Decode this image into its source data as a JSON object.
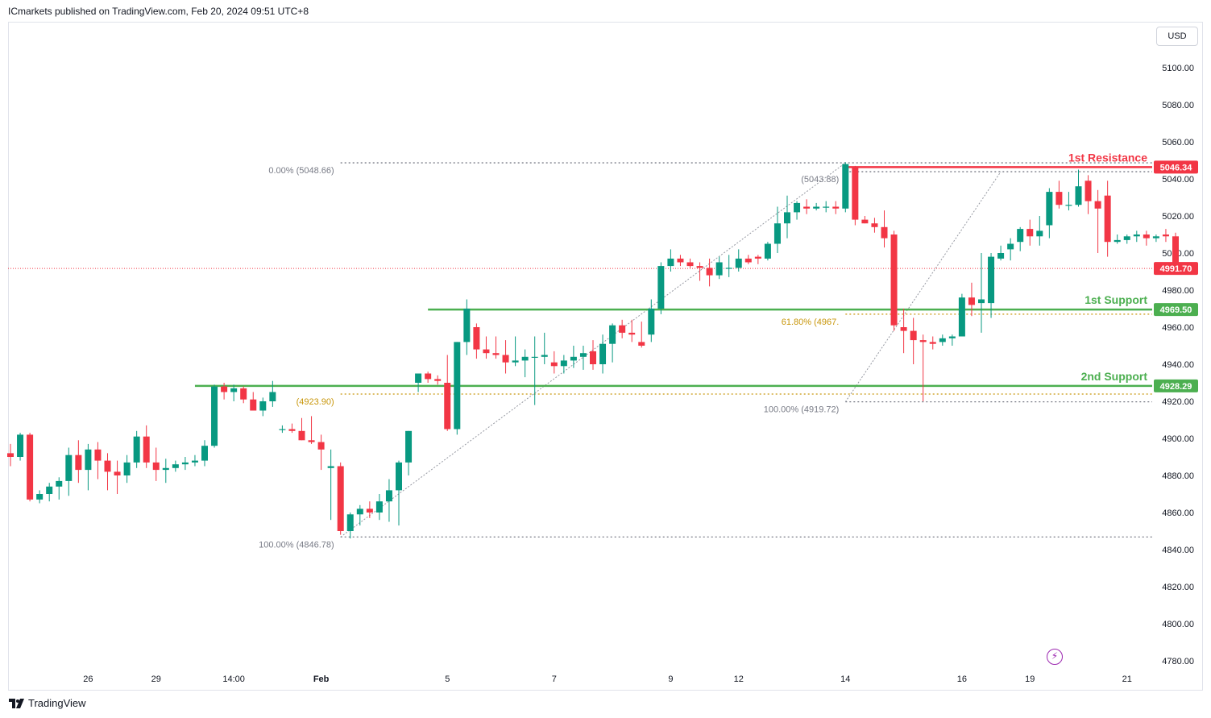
{
  "header": {
    "published": "ICmarkets published on TradingView.com, Feb 20, 2024 09:51 UTC+8"
  },
  "currency_button": "USD",
  "footer": {
    "brand": "TradingView"
  },
  "colors": {
    "up": "#089981",
    "down": "#f23645",
    "support": "#4caf50",
    "resistance": "#f23645",
    "fib": "#c8960a",
    "grid_text": "#131722"
  },
  "chart_data": {
    "type": "candlestick",
    "yticks": [
      5100,
      5080,
      5060,
      5040,
      5020,
      5000,
      4980,
      4960,
      4940,
      4920,
      4900,
      4880,
      4860,
      4840,
      4820,
      4800,
      4780
    ],
    "ytick_labels": [
      "5100.00",
      "5080.00",
      "5060.00",
      "5040.00",
      "5020.00",
      "5000.00",
      "4980.00",
      "4960.00",
      "4940.00",
      "4920.00",
      "4900.00",
      "4880.00",
      "4860.00",
      "4840.00",
      "4820.00",
      "4800.00",
      "4780.00"
    ],
    "xtick_labels": [
      {
        "label": "26",
        "i": 8,
        "bold": false
      },
      {
        "label": "29",
        "i": 15,
        "bold": false
      },
      {
        "label": "14:00",
        "i": 23,
        "bold": false
      },
      {
        "label": "Feb",
        "i": 32,
        "bold": true
      },
      {
        "label": "5",
        "i": 45,
        "bold": false
      },
      {
        "label": "7",
        "i": 56,
        "bold": false
      },
      {
        "label": "9",
        "i": 68,
        "bold": false
      },
      {
        "label": "12",
        "i": 75,
        "bold": false
      },
      {
        "label": "14",
        "i": 86,
        "bold": false
      },
      {
        "label": "16",
        "i": 98,
        "bold": false
      },
      {
        "label": "19",
        "i": 105,
        "bold": false
      },
      {
        "label": "21",
        "i": 115,
        "bold": false
      }
    ],
    "candles": [
      [
        4892,
        4897,
        4885,
        4890
      ],
      [
        4890,
        4903,
        4888,
        4902
      ],
      [
        4902,
        4903,
        4866,
        4867
      ],
      [
        4867,
        4872,
        4865,
        4870
      ],
      [
        4870,
        4876,
        4866,
        4874
      ],
      [
        4874,
        4879,
        4867,
        4877
      ],
      [
        4877,
        4895,
        4869,
        4891
      ],
      [
        4891,
        4899,
        4876,
        4883
      ],
      [
        4883,
        4897,
        4872,
        4894
      ],
      [
        4894,
        4898,
        4878,
        4888
      ],
      [
        4888,
        4892,
        4872,
        4882
      ],
      [
        4882,
        4888,
        4870,
        4880
      ],
      [
        4880,
        4891,
        4876,
        4887
      ],
      [
        4887,
        4904,
        4884,
        4901
      ],
      [
        4901,
        4907,
        4884,
        4887
      ],
      [
        4887,
        4895,
        4877,
        4883
      ],
      [
        4883,
        4889,
        4876,
        4884
      ],
      [
        4884,
        4888,
        4882,
        4886
      ],
      [
        4886,
        4890,
        4883,
        4887
      ],
      [
        4887,
        4891,
        4885,
        4888
      ],
      [
        4888,
        4899,
        4885,
        4896
      ],
      [
        4896,
        4929,
        4895,
        4928
      ],
      [
        4928,
        4930,
        4921,
        4925
      ],
      [
        4925,
        4929,
        4920,
        4927
      ],
      [
        4927,
        4928,
        4919,
        4921
      ],
      [
        4921,
        4925,
        4915,
        4915
      ],
      [
        4915,
        4922,
        4912,
        4920
      ],
      [
        4920,
        4931,
        4917,
        4925
      ],
      [
        4905,
        4907,
        4903,
        4905
      ],
      [
        4905,
        4908,
        4903,
        4904
      ],
      [
        4904,
        4911,
        4899,
        4899
      ],
      [
        4899,
        4912,
        4897,
        4898
      ],
      [
        4898,
        4902,
        4883,
        4894
      ],
      [
        4884,
        4894,
        4856,
        4885
      ],
      [
        4885,
        4887,
        4848,
        4850
      ],
      [
        4850,
        4860,
        4846,
        4859
      ],
      [
        4859,
        4864,
        4853,
        4862
      ],
      [
        4862,
        4866,
        4857,
        4860
      ],
      [
        4860,
        4870,
        4856,
        4866
      ],
      [
        4866,
        4878,
        4855,
        4872
      ],
      [
        4872,
        4888,
        4853,
        4887
      ],
      [
        4887,
        4904,
        4880,
        4904
      ],
      [
        4930,
        4935,
        4925,
        4935
      ],
      [
        4935,
        4936,
        4930,
        4932
      ],
      [
        4932,
        4934,
        4929,
        4931
      ],
      [
        4930,
        4945,
        4904,
        4905
      ],
      [
        4905,
        4952,
        4902,
        4952
      ],
      [
        4952,
        4975,
        4945,
        4970
      ],
      [
        4960,
        4962,
        4943,
        4948
      ],
      [
        4948,
        4955,
        4943,
        4946
      ],
      [
        4946,
        4955,
        4943,
        4945
      ],
      [
        4945,
        4953,
        4935,
        4941
      ],
      [
        4941,
        4955,
        4939,
        4942
      ],
      [
        4942,
        4948,
        4933,
        4944
      ],
      [
        4944,
        4955,
        4918,
        4944
      ],
      [
        4944,
        4957,
        4940,
        4945
      ],
      [
        4941,
        4947,
        4935,
        4939
      ],
      [
        4939,
        4945,
        4935,
        4942
      ],
      [
        4942,
        4950,
        4938,
        4944
      ],
      [
        4944,
        4950,
        4937,
        4946
      ],
      [
        4947,
        4953,
        4937,
        4940
      ],
      [
        4940,
        4956,
        4935,
        4951
      ],
      [
        4951,
        4962,
        4941,
        4961
      ],
      [
        4961,
        4964,
        4954,
        4957
      ],
      [
        4957,
        4964,
        4952,
        4956
      ],
      [
        4952,
        4963,
        4949,
        4950
      ],
      [
        4956,
        4975,
        4952,
        4970
      ],
      [
        4970,
        4995,
        4967,
        4993
      ],
      [
        4993,
        5002,
        4990,
        4997
      ],
      [
        4997,
        4999,
        4993,
        4995
      ],
      [
        4995,
        4997,
        4992,
        4993
      ],
      [
        4993,
        4995,
        4985,
        4992
      ],
      [
        4992,
        4997,
        4982,
        4988
      ],
      [
        4988,
        4998,
        4986,
        4995
      ],
      [
        4992,
        4999,
        4987,
        4992
      ],
      [
        4992,
        5002,
        4990,
        4997
      ],
      [
        4997,
        4999,
        4994,
        4995
      ],
      [
        4998,
        4999,
        4994,
        4997
      ],
      [
        4997,
        5006,
        4996,
        5005
      ],
      [
        5005,
        5025,
        5000,
        5016
      ],
      [
        5016,
        5031,
        5008,
        5022
      ],
      [
        5022,
        5028,
        5018,
        5027
      ],
      [
        5025,
        5029,
        5021,
        5024
      ],
      [
        5024,
        5027,
        5023,
        5025
      ],
      [
        5025,
        5028,
        5022,
        5025
      ],
      [
        5025,
        5028,
        5021,
        5024
      ],
      [
        5024,
        5049,
        5022,
        5048
      ],
      [
        5046,
        5047,
        5015,
        5018
      ],
      [
        5018,
        5020,
        5016,
        5016
      ],
      [
        5016,
        5019,
        5011,
        5014
      ],
      [
        5014,
        5023,
        5003,
        5008
      ],
      [
        5010,
        5012,
        4958,
        4961
      ],
      [
        4960,
        4970,
        4946,
        4958
      ],
      [
        4958,
        4965,
        4940,
        4953
      ],
      [
        4953,
        4956,
        4920,
        4952
      ],
      [
        4952,
        4955,
        4948,
        4951
      ],
      [
        4952,
        4956,
        4950,
        4954
      ],
      [
        4954,
        4956,
        4950,
        4955
      ],
      [
        4955,
        4978,
        4956,
        4976
      ],
      [
        4976,
        4984,
        4966,
        4972
      ],
      [
        4973,
        5000,
        4957,
        4975
      ],
      [
        4973,
        5000,
        4965,
        4998
      ],
      [
        4997,
        5004,
        4996,
        5000
      ],
      [
        5002,
        5008,
        4996,
        5005
      ],
      [
        5006,
        5014,
        5001,
        5013
      ],
      [
        5013,
        5018,
        5004,
        5009
      ],
      [
        5009,
        5020,
        5004,
        5012
      ],
      [
        5015,
        5035,
        5008,
        5033
      ],
      [
        5033,
        5039,
        5024,
        5026
      ],
      [
        5026,
        5033,
        5023,
        5026
      ],
      [
        5026,
        5045,
        5025,
        5036
      ],
      [
        5039,
        5042,
        5021,
        5028
      ],
      [
        5028,
        5034,
        5000,
        5024
      ],
      [
        5031,
        5039,
        4998,
        5006
      ],
      [
        5006,
        5010,
        5005,
        5007
      ],
      [
        5007,
        5010,
        5005,
        5009
      ],
      [
        5009,
        5012,
        5006,
        5010
      ],
      [
        5010,
        5012,
        5004,
        5008
      ],
      [
        5008,
        5010,
        5006,
        5009
      ],
      [
        5010,
        5013,
        5006,
        5009
      ],
      [
        5009,
        5011,
        4991,
        4991
      ]
    ],
    "last_price": 4991.7,
    "last_price_label": "4991.70",
    "levels": [
      {
        "name": "1st Resistance",
        "value": 5046.34,
        "label": "5046.34",
        "kind": "resistance"
      },
      {
        "name": "1st Support",
        "value": 4969.5,
        "label": "4969.50",
        "kind": "support"
      },
      {
        "name": "2nd Support",
        "value": 4928.29,
        "label": "4928.29",
        "kind": "support"
      }
    ],
    "fib_sets": [
      {
        "start_i": 34,
        "end_i": 86,
        "low": 4846.78,
        "high": 5048.66,
        "label_0": "0.00% (5048.66)",
        "label_100": "100.00% (4846.78)",
        "label_618": "(4923.90)",
        "level_618": 4923.9
      },
      {
        "start_i": 86,
        "end_i": 102,
        "low": 4919.72,
        "high": 5043.88,
        "label_0": "(5043.88)",
        "label_100": "100.00% (4919.72)",
        "label_618": "61.80% (4967.",
        "level_618": 4967.0
      }
    ]
  }
}
